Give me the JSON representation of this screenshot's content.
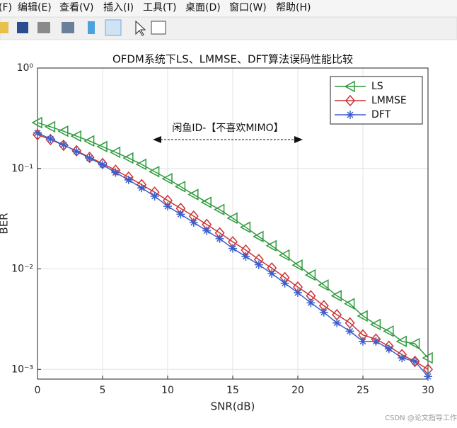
{
  "menu": [
    "(F)",
    "编辑(E)",
    "查看(V)",
    "插入(I)",
    "工具(T)",
    "桌面(D)",
    "窗口(W)",
    "帮助(H)"
  ],
  "watermark": "CSDN @论文指导工作室",
  "chart_data": {
    "type": "line",
    "title": "OFDM系统下LS、LMMSE、DFT算法误码性能比较",
    "x_label": "SNR(dB)",
    "y_label": "BER",
    "annotation": "闲鱼ID-【不喜欢MIMO】",
    "x": [
      0,
      1,
      2,
      3,
      4,
      5,
      6,
      7,
      8,
      9,
      10,
      11,
      12,
      13,
      14,
      15,
      16,
      17,
      18,
      19,
      20,
      21,
      22,
      23,
      24,
      25,
      26,
      27,
      28,
      29,
      30
    ],
    "series": [
      {
        "name": "LS",
        "color": "#2e9a3c",
        "marker": "triangle-left",
        "values": [
          0.286,
          0.26,
          0.235,
          0.21,
          0.188,
          0.165,
          0.145,
          0.127,
          0.11,
          0.093,
          0.079,
          0.066,
          0.055,
          0.046,
          0.039,
          0.032,
          0.026,
          0.021,
          0.017,
          0.0137,
          0.0109,
          0.0087,
          0.0069,
          0.0054,
          0.0045,
          0.0034,
          0.0028,
          0.0024,
          0.0019,
          0.0018,
          0.0013
        ]
      },
      {
        "name": "LMMSE",
        "color": "#cc3333",
        "marker": "diamond",
        "values": [
          0.217,
          0.194,
          0.17,
          0.15,
          0.129,
          0.112,
          0.096,
          0.082,
          0.069,
          0.058,
          0.048,
          0.04,
          0.0335,
          0.0277,
          0.0228,
          0.0186,
          0.0154,
          0.0124,
          0.0102,
          0.0082,
          0.0066,
          0.0054,
          0.0043,
          0.0035,
          0.0029,
          0.0022,
          0.002,
          0.0017,
          0.0014,
          0.0012,
          0.001
        ]
      },
      {
        "name": "DFT",
        "color": "#3a5fcd",
        "marker": "asterisk",
        "values": [
          0.226,
          0.197,
          0.172,
          0.148,
          0.127,
          0.109,
          0.091,
          0.077,
          0.064,
          0.053,
          0.042,
          0.035,
          0.029,
          0.024,
          0.02,
          0.016,
          0.0133,
          0.011,
          0.009,
          0.0072,
          0.0058,
          0.0046,
          0.0037,
          0.0029,
          0.0024,
          0.0019,
          0.0019,
          0.0016,
          0.0013,
          0.0012,
          0.00085
        ]
      }
    ],
    "xlim": [
      0,
      30
    ],
    "xticks": [
      0,
      5,
      10,
      15,
      20,
      25,
      30
    ],
    "ylim": [
      0.0008,
      1
    ],
    "log_y": true,
    "yticks": [
      {
        "value": 0.001,
        "label": "10⁻³"
      },
      {
        "value": 0.01,
        "label": "10⁻²"
      },
      {
        "value": 0.1,
        "label": "10⁻¹"
      },
      {
        "value": 1,
        "label": "10⁰"
      }
    ],
    "grid": true,
    "legend": "northeast"
  }
}
